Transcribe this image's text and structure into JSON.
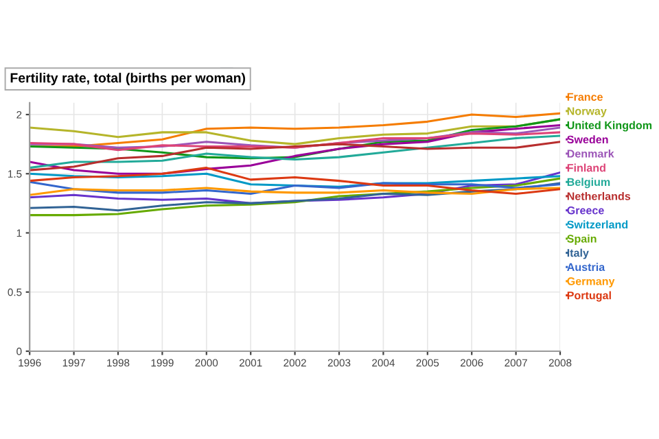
{
  "chart_data": {
    "type": "line",
    "title": "Fertility rate, total (births per woman)",
    "x": [
      1996,
      1997,
      1998,
      1999,
      2000,
      2001,
      2002,
      2003,
      2004,
      2005,
      2006,
      2007,
      2008
    ],
    "xlim": [
      1996,
      2008
    ],
    "xticks": [
      1996,
      1997,
      1998,
      1999,
      2000,
      2001,
      2002,
      2003,
      2004,
      2005,
      2006,
      2007,
      2008
    ],
    "ylim": [
      0,
      2.1
    ],
    "yticks": [
      0,
      0.5,
      1,
      1.5,
      2
    ],
    "grid": true,
    "legend": "right",
    "marker": "none",
    "line_style": "solid",
    "series": [
      {
        "name": "France",
        "color": "#f57c00",
        "values": [
          1.73,
          1.73,
          1.76,
          1.79,
          1.88,
          1.89,
          1.88,
          1.89,
          1.91,
          1.94,
          2.0,
          1.98,
          2.01
        ]
      },
      {
        "name": "Norway",
        "color": "#b5b52a",
        "values": [
          1.89,
          1.86,
          1.81,
          1.85,
          1.85,
          1.78,
          1.75,
          1.8,
          1.83,
          1.84,
          1.9,
          1.9,
          1.96
        ]
      },
      {
        "name": "United Kingdom",
        "color": "#109618",
        "values": [
          1.73,
          1.72,
          1.71,
          1.68,
          1.64,
          1.63,
          1.64,
          1.71,
          1.77,
          1.78,
          1.87,
          1.9,
          1.96
        ]
      },
      {
        "name": "Sweden",
        "color": "#990099",
        "values": [
          1.6,
          1.53,
          1.5,
          1.5,
          1.54,
          1.57,
          1.65,
          1.71,
          1.75,
          1.77,
          1.85,
          1.88,
          1.91
        ]
      },
      {
        "name": "Denmark",
        "color": "#9c56b8",
        "values": [
          1.75,
          1.75,
          1.72,
          1.73,
          1.77,
          1.74,
          1.72,
          1.76,
          1.78,
          1.8,
          1.85,
          1.84,
          1.89
        ]
      },
      {
        "name": "Finland",
        "color": "#dd4477",
        "values": [
          1.76,
          1.75,
          1.7,
          1.74,
          1.73,
          1.73,
          1.72,
          1.76,
          1.8,
          1.8,
          1.84,
          1.83,
          1.85
        ]
      },
      {
        "name": "Belgium",
        "color": "#22aa99",
        "values": [
          1.55,
          1.6,
          1.6,
          1.61,
          1.67,
          1.64,
          1.62,
          1.64,
          1.68,
          1.72,
          1.76,
          1.8,
          1.82
        ]
      },
      {
        "name": "Netherlands",
        "color": "#b82e2e",
        "values": [
          1.53,
          1.56,
          1.63,
          1.65,
          1.72,
          1.71,
          1.73,
          1.75,
          1.73,
          1.71,
          1.72,
          1.72,
          1.77
        ]
      },
      {
        "name": "Greece",
        "color": "#6633cc",
        "values": [
          1.3,
          1.32,
          1.29,
          1.28,
          1.29,
          1.25,
          1.27,
          1.28,
          1.3,
          1.33,
          1.4,
          1.41,
          1.51
        ]
      },
      {
        "name": "Switzerland",
        "color": "#0099c6",
        "values": [
          1.5,
          1.48,
          1.47,
          1.48,
          1.5,
          1.41,
          1.4,
          1.39,
          1.42,
          1.42,
          1.44,
          1.46,
          1.48
        ]
      },
      {
        "name": "Spain",
        "color": "#66aa00",
        "values": [
          1.15,
          1.15,
          1.16,
          1.2,
          1.23,
          1.24,
          1.26,
          1.31,
          1.33,
          1.35,
          1.38,
          1.4,
          1.46
        ]
      },
      {
        "name": "Italy",
        "color": "#316395",
        "values": [
          1.21,
          1.22,
          1.19,
          1.23,
          1.26,
          1.25,
          1.27,
          1.29,
          1.33,
          1.32,
          1.35,
          1.37,
          1.42
        ]
      },
      {
        "name": "Austria",
        "color": "#3366cc",
        "values": [
          1.43,
          1.37,
          1.34,
          1.34,
          1.36,
          1.33,
          1.4,
          1.38,
          1.42,
          1.41,
          1.41,
          1.38,
          1.41
        ]
      },
      {
        "name": "Germany",
        "color": "#ff9900",
        "values": [
          1.32,
          1.37,
          1.36,
          1.36,
          1.38,
          1.35,
          1.34,
          1.34,
          1.36,
          1.34,
          1.33,
          1.37,
          1.38
        ]
      },
      {
        "name": "Portugal",
        "color": "#dc3912",
        "values": [
          1.44,
          1.47,
          1.48,
          1.5,
          1.55,
          1.45,
          1.47,
          1.44,
          1.4,
          1.4,
          1.36,
          1.33,
          1.37
        ]
      }
    ]
  }
}
